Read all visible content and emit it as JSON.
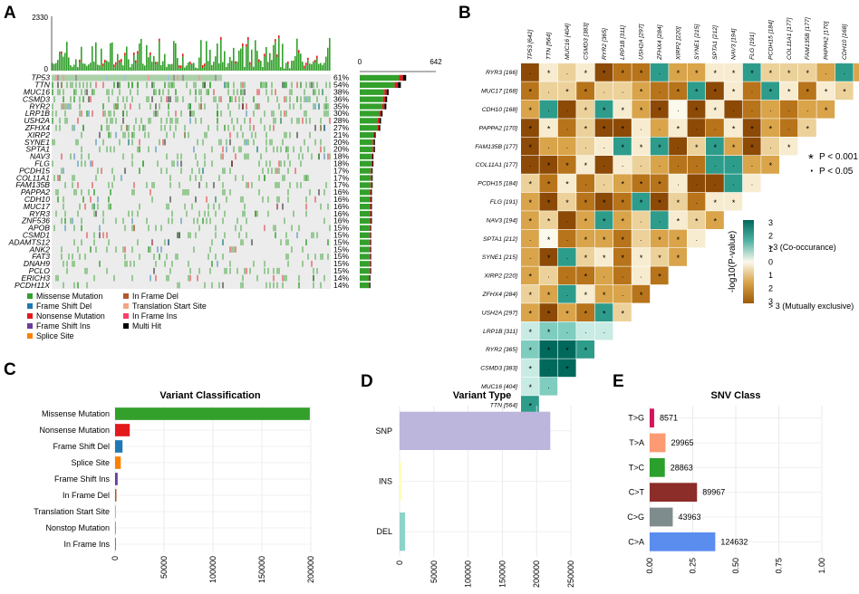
{
  "panel_labels": {
    "a": "A",
    "b": "B",
    "c": "C",
    "d": "D",
    "e": "E"
  },
  "chart_data": [
    {
      "panel": "A",
      "type": "heatmap",
      "title": "",
      "tmb_axis": {
        "max_label": "2330",
        "min_label": "0",
        "max": 2330
      },
      "bar_axis": {
        "min_label": "0",
        "max_label": "642",
        "max": 642
      },
      "genes": [
        {
          "name": "TP53",
          "pct": "61%",
          "freq": 0.61
        },
        {
          "name": "TTN",
          "pct": "54%",
          "freq": 0.54
        },
        {
          "name": "MUC16",
          "pct": "38%",
          "freq": 0.38
        },
        {
          "name": "CSMD3",
          "pct": "36%",
          "freq": 0.36
        },
        {
          "name": "RYR2",
          "pct": "35%",
          "freq": 0.35
        },
        {
          "name": "LRP1B",
          "pct": "30%",
          "freq": 0.3
        },
        {
          "name": "USH2A",
          "pct": "28%",
          "freq": 0.28
        },
        {
          "name": "ZFHX4",
          "pct": "27%",
          "freq": 0.27
        },
        {
          "name": "XIRP2",
          "pct": "21%",
          "freq": 0.21
        },
        {
          "name": "SYNE1",
          "pct": "20%",
          "freq": 0.2
        },
        {
          "name": "SPTA1",
          "pct": "20%",
          "freq": 0.2
        },
        {
          "name": "NAV3",
          "pct": "18%",
          "freq": 0.18
        },
        {
          "name": "FLG",
          "pct": "18%",
          "freq": 0.18
        },
        {
          "name": "PCDH15",
          "pct": "17%",
          "freq": 0.17
        },
        {
          "name": "COL11A1",
          "pct": "17%",
          "freq": 0.17
        },
        {
          "name": "FAM135B",
          "pct": "17%",
          "freq": 0.17
        },
        {
          "name": "PAPPA2",
          "pct": "16%",
          "freq": 0.16
        },
        {
          "name": "CDH10",
          "pct": "16%",
          "freq": 0.16
        },
        {
          "name": "MUC17",
          "pct": "16%",
          "freq": 0.16
        },
        {
          "name": "RYR3",
          "pct": "16%",
          "freq": 0.16
        },
        {
          "name": "ZNF536",
          "pct": "16%",
          "freq": 0.16
        },
        {
          "name": "APOB",
          "pct": "15%",
          "freq": 0.15
        },
        {
          "name": "CSMD1",
          "pct": "15%",
          "freq": 0.15
        },
        {
          "name": "ADAMTS12",
          "pct": "15%",
          "freq": 0.15
        },
        {
          "name": "ANK2",
          "pct": "15%",
          "freq": 0.15
        },
        {
          "name": "FAT3",
          "pct": "15%",
          "freq": 0.15
        },
        {
          "name": "DNAH9",
          "pct": "15%",
          "freq": 0.15
        },
        {
          "name": "PCLO",
          "pct": "15%",
          "freq": 0.15
        },
        {
          "name": "ERICH3",
          "pct": "14%",
          "freq": 0.14
        },
        {
          "name": "PCDH11X",
          "pct": "14%",
          "freq": 0.14
        }
      ],
      "legend": [
        {
          "label": "Missense Mutation",
          "color": "#33a02c"
        },
        {
          "label": "In Frame Del",
          "color": "#b15928"
        },
        {
          "label": "Frame Shift Del",
          "color": "#1f78b4"
        },
        {
          "label": "Translation Start Site",
          "color": "#f4a582"
        },
        {
          "label": "Nonsense Mutation",
          "color": "#e31a1c"
        },
        {
          "label": "In Frame Ins",
          "color": "#fb3f6a"
        },
        {
          "label": "Frame Shift Ins",
          "color": "#6a3d9a"
        },
        {
          "label": "Multi Hit",
          "color": "#000000"
        },
        {
          "label": "Splice Site",
          "color": "#ff7f00"
        }
      ]
    },
    {
      "panel": "B",
      "type": "heatmap",
      "title": "",
      "column_genes": [
        "TP53 [642]",
        "TTN [564]",
        "MUC16 [404]",
        "CSMD3 [383]",
        "RYR2 [365]",
        "LRP1B [311]",
        "USH2A [297]",
        "ZFHX4 [284]",
        "XIRP2 [220]",
        "SYNE1 [215]",
        "SPTA1 [212]",
        "NAV3 [194]",
        "FLG [191]",
        "PCDH15 [184]",
        "COL11A1 [177]",
        "FAM135B [177]",
        "PAPPA2 [170]",
        "CDH10 [168]",
        "MUC17 [168]",
        "RYR3 [166]"
      ],
      "row_genes": [
        "RYR3 [166]",
        "MUC17 [168]",
        "CDH10 [168]",
        "PAPPA2 [170]",
        "FAM135B [177]",
        "COL11A1 [177]",
        "PCDH15 [184]",
        "FLG [191]",
        "NAV3 [194]",
        "SPTA1 [212]",
        "SYNE1 [215]",
        "XIRP2 [220]",
        "ZFHX4 [284]",
        "USH2A [297]",
        "LRP1B [311]",
        "RYR2 [365]",
        "CSMD3 [383]",
        "MUC16 [404]",
        "TTN [564]",
        "TP53 [642]"
      ],
      "sig_legend": [
        {
          "symbol": "*",
          "label": "P < 0.001"
        },
        {
          "symbol": "·",
          "label": "P < 0.05"
        }
      ],
      "colorbar": {
        "title": "-log10(P-value)",
        "top_label": ">3 (Co-occurance)",
        "bottom_label": "> 3 (Mutually exclusive)",
        "ticks": [
          "3",
          "2",
          "1",
          "0",
          "1",
          "2",
          "3"
        ]
      }
    },
    {
      "panel": "C",
      "type": "bar",
      "title": "Variant Classification",
      "categories": [
        "Missense Mutation",
        "Nonsense Mutation",
        "Frame Shift Del",
        "Splice Site",
        "Frame Shift Ins",
        "In Frame Del",
        "Translation Start Site",
        "Nonstop Mutation",
        "In Frame Ins"
      ],
      "values": [
        199000,
        15000,
        7600,
        5800,
        2600,
        1400,
        700,
        300,
        250
      ],
      "colors": [
        "#33a02c",
        "#e31a1c",
        "#1f78b4",
        "#ff7f00",
        "#6a3d9a",
        "#b15928",
        "#f4a582",
        "#999999",
        "#fb3f6a"
      ],
      "xlim": [
        0,
        200000
      ],
      "ticks": [
        "0",
        "50000",
        "100000",
        "150000",
        "200000"
      ],
      "tick_values": [
        0,
        50000,
        100000,
        150000,
        200000
      ]
    },
    {
      "panel": "D",
      "type": "bar",
      "title": "Variant Type",
      "categories": [
        "SNP",
        "INS",
        "DEL"
      ],
      "values": [
        220000,
        2500,
        8000
      ],
      "colors": [
        "#bcb6dc",
        "#ffffb3",
        "#8dd3c7"
      ],
      "xlim": [
        0,
        250000
      ],
      "ticks": [
        "0",
        "50000",
        "100000",
        "150000",
        "200000",
        "250000"
      ],
      "tick_values": [
        0,
        50000,
        100000,
        150000,
        200000,
        250000
      ]
    },
    {
      "panel": "E",
      "type": "bar",
      "title": "SNV Class",
      "categories": [
        "T>G",
        "T>A",
        "T>C",
        "C>T",
        "C>G",
        "C>A"
      ],
      "values": [
        0.026,
        0.092,
        0.088,
        0.275,
        0.134,
        0.381
      ],
      "labels": [
        "8571",
        "29965",
        "28863",
        "89967",
        "43963",
        "124632"
      ],
      "colors": [
        "#d4145a",
        "#fb9a73",
        "#2ca02c",
        "#8c2d29",
        "#7f8c8d",
        "#5b8def"
      ],
      "xlim": [
        0,
        1
      ],
      "ticks": [
        "0.00",
        "0.25",
        "0.50",
        "0.75",
        "1.00"
      ],
      "tick_values": [
        0,
        0.25,
        0.5,
        0.75,
        1
      ]
    }
  ]
}
